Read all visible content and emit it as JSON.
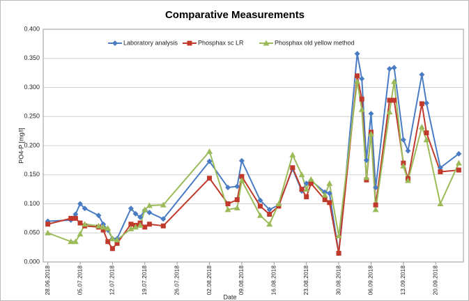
{
  "chart_data": {
    "type": "line",
    "title": "Comparative Measurements",
    "x_label": "Date",
    "y_label": "PO4-P [mg/l]",
    "x": [
      "28.06.2018",
      "03.07.2018",
      "04.07.2018",
      "05.07.2018",
      "06.07.2018",
      "09.07.2018",
      "10.07.2018",
      "11.07.2018",
      "12.07.2018",
      "13.07.2018",
      "16.07.2018",
      "17.07.2018",
      "18.07.2018",
      "19.07.2018",
      "20.07.2018",
      "23.07.2018",
      "02.08.2018",
      "06.08.2018",
      "08.08.2018",
      "09.08.2018",
      "13.08.2018",
      "15.08.2018",
      "17.08.2018",
      "20.08.2018",
      "22.08.2018",
      "23.08.2018",
      "24.08.2018",
      "27.08.2018",
      "28.08.2018",
      "30.08.2018",
      "03.09.2018",
      "04.09.2018",
      "05.09.2018",
      "06.09.2018",
      "07.09.2018",
      "10.09.2018",
      "11.09.2018",
      "13.09.2018",
      "14.09.2018",
      "17.09.2018",
      "18.09.2018",
      "21.09.2018",
      "25.09.2018"
    ],
    "series": [
      {
        "name": "Laboratory analysis",
        "color": "#4a7cc4",
        "marker": "diamond",
        "values": [
          0.07,
          0.072,
          0.082,
          0.1,
          0.092,
          0.08,
          0.065,
          0.055,
          0.04,
          0.04,
          0.092,
          0.083,
          0.077,
          0.089,
          0.085,
          0.074,
          0.173,
          0.128,
          0.13,
          0.174,
          0.106,
          0.09,
          0.098,
          0.16,
          0.122,
          0.135,
          0.14,
          0.12,
          0.118,
          0.015,
          0.358,
          0.315,
          0.175,
          0.255,
          0.128,
          0.332,
          0.334,
          0.21,
          0.191,
          0.322,
          0.273,
          0.162,
          0.186
        ]
      },
      {
        "name": "Phosphax sc LR",
        "color": "#c0392b",
        "marker": "square",
        "values": [
          0.065,
          0.075,
          0.075,
          0.067,
          0.062,
          0.06,
          0.055,
          0.035,
          0.023,
          0.032,
          0.065,
          0.063,
          0.067,
          0.06,
          0.065,
          0.062,
          0.144,
          0.1,
          0.107,
          0.147,
          0.096,
          0.082,
          0.096,
          0.162,
          0.125,
          0.112,
          0.135,
          0.107,
          0.102,
          0.015,
          0.32,
          0.28,
          0.141,
          0.223,
          0.098,
          0.278,
          0.278,
          0.17,
          0.143,
          0.272,
          0.222,
          0.155,
          0.158
        ]
      },
      {
        "name": "Phosphax old yellow method",
        "color": "#9bbb59",
        "marker": "triangle",
        "values": [
          0.05,
          0.035,
          0.035,
          0.048,
          0.065,
          0.062,
          0.06,
          0.058,
          0.04,
          0.038,
          0.057,
          0.06,
          0.063,
          0.09,
          0.097,
          0.098,
          0.19,
          0.09,
          0.093,
          0.14,
          0.08,
          0.065,
          0.1,
          0.184,
          0.15,
          0.125,
          0.142,
          0.115,
          0.135,
          0.045,
          0.31,
          0.262,
          0.145,
          0.22,
          0.09,
          0.258,
          0.31,
          0.165,
          0.14,
          0.232,
          0.21,
          0.1,
          0.17
        ]
      }
    ],
    "xlim": [
      "27.06.2018",
      "26.09.2018"
    ],
    "xticks": [
      "28.06.2018",
      "05.07.2018",
      "12.07.2018",
      "19.07.2018",
      "26.07.2018",
      "02.08.2018",
      "09.08.2018",
      "16.08.2018",
      "23.08.2018",
      "30.08.2018",
      "06.09.2018",
      "13.09.2018",
      "20.09.2018"
    ],
    "ylim": [
      0,
      0.4
    ],
    "yticks": [
      {
        "value": 0,
        "label": "0.000"
      },
      {
        "value": 0.05,
        "label": "0.050"
      },
      {
        "value": 0.1,
        "label": "0.100"
      },
      {
        "value": 0.15,
        "label": "0.150"
      },
      {
        "value": 0.2,
        "label": "0.200"
      },
      {
        "value": 0.25,
        "label": "0.250"
      },
      {
        "value": 0.3,
        "label": "0.300"
      },
      {
        "value": 0.35,
        "label": "0.350"
      },
      {
        "value": 0.4,
        "label": "0.400"
      }
    ],
    "grid": true,
    "legend": "top"
  }
}
